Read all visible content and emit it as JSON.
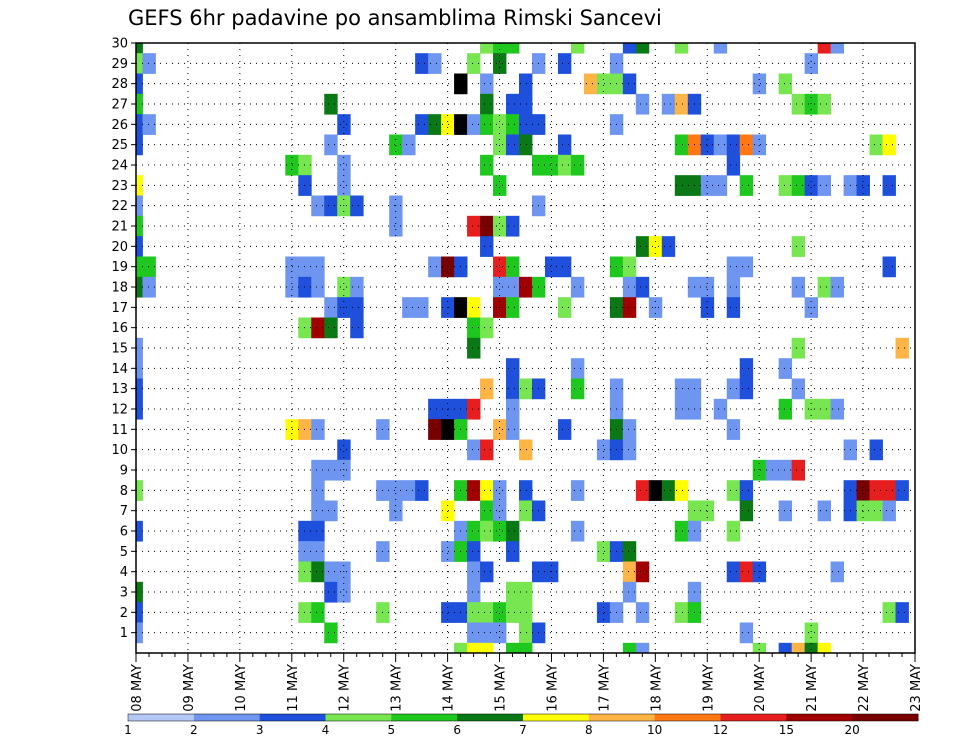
{
  "chart_data": {
    "type": "heatmap",
    "title": "GEFS 6hr padavine po ansamblima Rimski Sancevi",
    "xlabel": "",
    "ylabel": "",
    "x_tick_labels": [
      "08 MAY",
      "09 MAY",
      "10 MAY",
      "11 MAY",
      "12 MAY",
      "13 MAY",
      "14 MAY",
      "15 MAY",
      "16 MAY",
      "17 MAY",
      "18 MAY",
      "19 MAY",
      "20 MAY",
      "21 MAY",
      "22 MAY",
      "23 MAY"
    ],
    "y_tick_labels": [
      "1",
      "2",
      "3",
      "4",
      "5",
      "6",
      "7",
      "8",
      "9",
      "10",
      "11",
      "12",
      "13",
      "14",
      "15",
      "16",
      "17",
      "18",
      "19",
      "20",
      "21",
      "22",
      "23",
      "24",
      "25",
      "26",
      "27",
      "28",
      "29",
      "30"
    ],
    "steps_per_day": 4,
    "time_steps": 61,
    "ylim": [
      0,
      30
    ],
    "grid": "dotted",
    "legend": {
      "placement": "bottom",
      "labels": [
        "1",
        "2",
        "3",
        "4",
        "5",
        "6",
        "7",
        "8",
        "10",
        "12",
        "15",
        "20"
      ],
      "colors": [
        "#b4c8f5",
        "#6e96f0",
        "#1e50dc",
        "#78e650",
        "#1ec81e",
        "#0a7814",
        "#ffff00",
        "#ffb446",
        "#ff7814",
        "#e61e1e",
        "#a00000",
        "#780000"
      ]
    },
    "cells": [
      [
        30,
        0,
        5
      ],
      [
        30,
        27,
        3
      ],
      [
        30,
        28,
        4
      ],
      [
        30,
        29,
        4
      ],
      [
        30,
        34,
        3
      ],
      [
        30,
        38,
        2
      ],
      [
        30,
        39,
        5
      ],
      [
        30,
        42,
        3
      ],
      [
        30,
        45,
        1
      ],
      [
        30,
        53,
        9
      ],
      [
        30,
        54,
        1
      ],
      [
        29,
        0,
        3
      ],
      [
        29,
        1,
        1
      ],
      [
        29,
        22,
        2
      ],
      [
        29,
        23,
        1
      ],
      [
        29,
        26,
        3
      ],
      [
        29,
        28,
        5
      ],
      [
        29,
        31,
        1
      ],
      [
        29,
        33,
        2
      ],
      [
        29,
        37,
        1
      ],
      [
        29,
        52,
        1
      ],
      [
        28,
        0,
        2
      ],
      [
        28,
        25,
        12
      ],
      [
        28,
        27,
        1
      ],
      [
        28,
        30,
        2
      ],
      [
        28,
        35,
        7
      ],
      [
        28,
        36,
        3
      ],
      [
        28,
        37,
        3
      ],
      [
        28,
        38,
        2
      ],
      [
        28,
        48,
        1
      ],
      [
        28,
        50,
        3
      ],
      [
        27,
        0,
        4
      ],
      [
        27,
        15,
        5
      ],
      [
        27,
        27,
        5
      ],
      [
        27,
        29,
        2
      ],
      [
        27,
        30,
        2
      ],
      [
        27,
        39,
        1
      ],
      [
        27,
        41,
        1
      ],
      [
        27,
        42,
        7
      ],
      [
        27,
        43,
        2
      ],
      [
        27,
        51,
        3
      ],
      [
        27,
        52,
        4
      ],
      [
        27,
        53,
        3
      ],
      [
        26,
        0,
        2
      ],
      [
        26,
        1,
        1
      ],
      [
        26,
        16,
        2
      ],
      [
        26,
        22,
        2
      ],
      [
        26,
        23,
        5
      ],
      [
        26,
        24,
        6
      ],
      [
        26,
        25,
        12
      ],
      [
        26,
        26,
        1
      ],
      [
        26,
        27,
        4
      ],
      [
        26,
        28,
        3
      ],
      [
        26,
        29,
        4
      ],
      [
        26,
        30,
        2
      ],
      [
        26,
        31,
        2
      ],
      [
        26,
        37,
        1
      ],
      [
        25,
        0,
        2
      ],
      [
        25,
        15,
        1
      ],
      [
        25,
        20,
        4
      ],
      [
        25,
        21,
        1
      ],
      [
        25,
        28,
        3
      ],
      [
        25,
        29,
        2
      ],
      [
        25,
        30,
        5
      ],
      [
        25,
        33,
        2
      ],
      [
        25,
        42,
        4
      ],
      [
        25,
        43,
        8
      ],
      [
        25,
        44,
        2
      ],
      [
        25,
        45,
        1
      ],
      [
        25,
        46,
        2
      ],
      [
        25,
        47,
        8
      ],
      [
        25,
        48,
        1
      ],
      [
        25,
        57,
        3
      ],
      [
        25,
        58,
        6
      ],
      [
        24,
        12,
        4
      ],
      [
        24,
        13,
        3
      ],
      [
        24,
        16,
        1
      ],
      [
        24,
        27,
        4
      ],
      [
        24,
        31,
        4
      ],
      [
        24,
        32,
        4
      ],
      [
        24,
        33,
        3
      ],
      [
        24,
        34,
        4
      ],
      [
        24,
        46,
        2
      ],
      [
        23,
        0,
        6
      ],
      [
        23,
        13,
        2
      ],
      [
        23,
        16,
        1
      ],
      [
        23,
        28,
        4
      ],
      [
        23,
        42,
        5
      ],
      [
        23,
        43,
        5
      ],
      [
        23,
        44,
        1
      ],
      [
        23,
        45,
        1
      ],
      [
        23,
        47,
        4
      ],
      [
        23,
        50,
        3
      ],
      [
        23,
        51,
        4
      ],
      [
        23,
        52,
        2
      ],
      [
        23,
        53,
        1
      ],
      [
        23,
        55,
        1
      ],
      [
        23,
        56,
        2
      ],
      [
        23,
        58,
        2
      ],
      [
        22,
        0,
        1
      ],
      [
        22,
        14,
        1
      ],
      [
        22,
        15,
        2
      ],
      [
        22,
        16,
        3
      ],
      [
        22,
        17,
        2
      ],
      [
        22,
        20,
        1
      ],
      [
        22,
        31,
        1
      ],
      [
        21,
        0,
        4
      ],
      [
        21,
        20,
        1
      ],
      [
        21,
        26,
        9
      ],
      [
        21,
        27,
        11
      ],
      [
        21,
        28,
        3
      ],
      [
        21,
        29,
        2
      ],
      [
        20,
        0,
        2
      ],
      [
        20,
        27,
        2
      ],
      [
        20,
        39,
        5
      ],
      [
        20,
        40,
        6
      ],
      [
        20,
        41,
        2
      ],
      [
        20,
        51,
        3
      ],
      [
        19,
        0,
        4
      ],
      [
        19,
        1,
        4
      ],
      [
        19,
        12,
        1
      ],
      [
        19,
        13,
        1
      ],
      [
        19,
        14,
        1
      ],
      [
        19,
        23,
        1
      ],
      [
        19,
        24,
        11
      ],
      [
        19,
        25,
        2
      ],
      [
        19,
        28,
        9
      ],
      [
        19,
        29,
        4
      ],
      [
        19,
        32,
        2
      ],
      [
        19,
        33,
        2
      ],
      [
        19,
        37,
        4
      ],
      [
        19,
        38,
        3
      ],
      [
        19,
        46,
        1
      ],
      [
        19,
        47,
        1
      ],
      [
        19,
        58,
        2
      ],
      [
        18,
        0,
        5
      ],
      [
        18,
        1,
        1
      ],
      [
        18,
        12,
        1
      ],
      [
        18,
        13,
        2
      ],
      [
        18,
        14,
        1
      ],
      [
        18,
        16,
        3
      ],
      [
        18,
        17,
        1
      ],
      [
        18,
        28,
        1
      ],
      [
        18,
        29,
        1
      ],
      [
        18,
        30,
        10
      ],
      [
        18,
        31,
        4
      ],
      [
        18,
        34,
        1
      ],
      [
        18,
        38,
        1
      ],
      [
        18,
        39,
        2
      ],
      [
        18,
        43,
        1
      ],
      [
        18,
        44,
        1
      ],
      [
        18,
        46,
        1
      ],
      [
        18,
        51,
        1
      ],
      [
        18,
        53,
        3
      ],
      [
        18,
        54,
        1
      ],
      [
        17,
        15,
        1
      ],
      [
        17,
        16,
        2
      ],
      [
        17,
        17,
        2
      ],
      [
        17,
        21,
        1
      ],
      [
        17,
        22,
        1
      ],
      [
        17,
        24,
        2
      ],
      [
        17,
        25,
        12
      ],
      [
        17,
        26,
        6
      ],
      [
        17,
        28,
        10
      ],
      [
        17,
        29,
        4
      ],
      [
        17,
        33,
        3
      ],
      [
        17,
        37,
        5
      ],
      [
        17,
        38,
        10
      ],
      [
        17,
        40,
        1
      ],
      [
        17,
        44,
        2
      ],
      [
        17,
        46,
        2
      ],
      [
        17,
        52,
        1
      ],
      [
        16,
        13,
        3
      ],
      [
        16,
        14,
        10
      ],
      [
        16,
        15,
        5
      ],
      [
        16,
        17,
        2
      ],
      [
        16,
        26,
        4
      ],
      [
        16,
        27,
        3
      ],
      [
        15,
        0,
        1
      ],
      [
        15,
        26,
        5
      ],
      [
        15,
        51,
        3
      ],
      [
        15,
        59,
        7
      ],
      [
        14,
        0,
        1
      ],
      [
        14,
        29,
        2
      ],
      [
        14,
        34,
        1
      ],
      [
        14,
        47,
        2
      ],
      [
        14,
        50,
        1
      ],
      [
        13,
        0,
        2
      ],
      [
        13,
        27,
        7
      ],
      [
        13,
        29,
        2
      ],
      [
        13,
        30,
        3
      ],
      [
        13,
        31,
        2
      ],
      [
        13,
        34,
        4
      ],
      [
        13,
        37,
        1
      ],
      [
        13,
        42,
        1
      ],
      [
        13,
        43,
        1
      ],
      [
        13,
        46,
        1
      ],
      [
        13,
        47,
        2
      ],
      [
        13,
        51,
        1
      ],
      [
        12,
        0,
        2
      ],
      [
        12,
        23,
        2
      ],
      [
        12,
        24,
        2
      ],
      [
        12,
        25,
        2
      ],
      [
        12,
        26,
        9
      ],
      [
        12,
        29,
        1
      ],
      [
        12,
        37,
        1
      ],
      [
        12,
        42,
        1
      ],
      [
        12,
        43,
        1
      ],
      [
        12,
        45,
        1
      ],
      [
        12,
        50,
        4
      ],
      [
        12,
        52,
        3
      ],
      [
        12,
        53,
        3
      ],
      [
        12,
        54,
        1
      ],
      [
        11,
        12,
        6
      ],
      [
        11,
        13,
        7
      ],
      [
        11,
        14,
        1
      ],
      [
        11,
        19,
        1
      ],
      [
        11,
        23,
        11
      ],
      [
        11,
        24,
        12
      ],
      [
        11,
        25,
        4
      ],
      [
        11,
        28,
        7
      ],
      [
        11,
        29,
        1
      ],
      [
        11,
        33,
        2
      ],
      [
        11,
        37,
        5
      ],
      [
        11,
        38,
        1
      ],
      [
        11,
        46,
        1
      ],
      [
        10,
        16,
        2
      ],
      [
        10,
        26,
        1
      ],
      [
        10,
        27,
        9
      ],
      [
        10,
        30,
        7
      ],
      [
        10,
        36,
        1
      ],
      [
        10,
        37,
        2
      ],
      [
        10,
        38,
        1
      ],
      [
        10,
        55,
        1
      ],
      [
        10,
        57,
        2
      ],
      [
        9,
        14,
        1
      ],
      [
        9,
        15,
        1
      ],
      [
        9,
        16,
        1
      ],
      [
        9,
        48,
        4
      ],
      [
        9,
        49,
        1
      ],
      [
        9,
        50,
        1
      ],
      [
        9,
        51,
        9
      ],
      [
        8,
        0,
        3
      ],
      [
        8,
        14,
        1
      ],
      [
        8,
        19,
        1
      ],
      [
        8,
        20,
        1
      ],
      [
        8,
        21,
        1
      ],
      [
        8,
        22,
        2
      ],
      [
        8,
        25,
        4
      ],
      [
        8,
        26,
        10
      ],
      [
        8,
        27,
        6
      ],
      [
        8,
        28,
        1
      ],
      [
        8,
        30,
        2
      ],
      [
        8,
        34,
        1
      ],
      [
        8,
        39,
        9
      ],
      [
        8,
        40,
        12
      ],
      [
        8,
        41,
        5
      ],
      [
        8,
        42,
        6
      ],
      [
        8,
        46,
        3
      ],
      [
        8,
        47,
        2
      ],
      [
        8,
        55,
        2
      ],
      [
        8,
        56,
        11
      ],
      [
        8,
        57,
        9
      ],
      [
        8,
        58,
        9
      ],
      [
        8,
        59,
        2
      ],
      [
        7,
        14,
        1
      ],
      [
        7,
        15,
        1
      ],
      [
        7,
        20,
        1
      ],
      [
        7,
        24,
        6
      ],
      [
        7,
        27,
        4
      ],
      [
        7,
        28,
        1
      ],
      [
        7,
        30,
        3
      ],
      [
        7,
        31,
        2
      ],
      [
        7,
        43,
        3
      ],
      [
        7,
        44,
        3
      ],
      [
        7,
        47,
        5
      ],
      [
        7,
        50,
        1
      ],
      [
        7,
        53,
        1
      ],
      [
        7,
        55,
        2
      ],
      [
        7,
        56,
        3
      ],
      [
        7,
        57,
        3
      ],
      [
        7,
        58,
        1
      ],
      [
        6,
        0,
        2
      ],
      [
        6,
        13,
        2
      ],
      [
        6,
        14,
        2
      ],
      [
        6,
        25,
        1
      ],
      [
        6,
        26,
        4
      ],
      [
        6,
        27,
        3
      ],
      [
        6,
        28,
        4
      ],
      [
        6,
        29,
        5
      ],
      [
        6,
        34,
        1
      ],
      [
        6,
        42,
        4
      ],
      [
        6,
        43,
        1
      ],
      [
        6,
        46,
        3
      ],
      [
        5,
        13,
        1
      ],
      [
        5,
        14,
        1
      ],
      [
        5,
        19,
        1
      ],
      [
        5,
        24,
        1
      ],
      [
        5,
        25,
        4
      ],
      [
        5,
        26,
        2
      ],
      [
        5,
        29,
        2
      ],
      [
        5,
        36,
        3
      ],
      [
        5,
        37,
        2
      ],
      [
        5,
        38,
        5
      ],
      [
        4,
        13,
        3
      ],
      [
        4,
        14,
        5
      ],
      [
        4,
        15,
        1
      ],
      [
        4,
        16,
        1
      ],
      [
        4,
        26,
        1
      ],
      [
        4,
        27,
        2
      ],
      [
        4,
        31,
        2
      ],
      [
        4,
        32,
        2
      ],
      [
        4,
        38,
        7
      ],
      [
        4,
        39,
        10
      ],
      [
        4,
        46,
        2
      ],
      [
        4,
        47,
        9
      ],
      [
        4,
        48,
        2
      ],
      [
        4,
        54,
        1
      ],
      [
        3,
        0,
        5
      ],
      [
        3,
        15,
        2
      ],
      [
        3,
        16,
        1
      ],
      [
        3,
        26,
        1
      ],
      [
        3,
        29,
        3
      ],
      [
        3,
        30,
        3
      ],
      [
        3,
        38,
        1
      ],
      [
        3,
        43,
        1
      ],
      [
        2,
        0,
        2
      ],
      [
        2,
        13,
        3
      ],
      [
        2,
        14,
        4
      ],
      [
        2,
        19,
        3
      ],
      [
        2,
        24,
        2
      ],
      [
        2,
        25,
        2
      ],
      [
        2,
        26,
        3
      ],
      [
        2,
        27,
        3
      ],
      [
        2,
        28,
        4
      ],
      [
        2,
        29,
        3
      ],
      [
        2,
        30,
        3
      ],
      [
        2,
        36,
        2
      ],
      [
        2,
        37,
        1
      ],
      [
        2,
        39,
        1
      ],
      [
        2,
        42,
        3
      ],
      [
        2,
        43,
        4
      ],
      [
        2,
        58,
        3
      ],
      [
        2,
        59,
        2
      ],
      [
        1,
        0,
        1
      ],
      [
        1,
        15,
        4
      ],
      [
        1,
        26,
        1
      ],
      [
        1,
        27,
        1
      ],
      [
        1,
        28,
        1
      ],
      [
        1,
        30,
        3
      ],
      [
        1,
        31,
        2
      ],
      [
        1,
        47,
        1
      ],
      [
        1,
        52,
        3
      ],
      [
        0,
        25,
        3
      ],
      [
        0,
        26,
        6
      ],
      [
        0,
        27,
        6
      ],
      [
        0,
        29,
        4
      ],
      [
        0,
        30,
        4
      ],
      [
        0,
        38,
        4
      ],
      [
        0,
        39,
        1
      ],
      [
        0,
        48,
        3
      ],
      [
        0,
        50,
        2
      ],
      [
        0,
        51,
        7
      ],
      [
        0,
        52,
        5
      ],
      [
        0,
        53,
        6
      ]
    ]
  }
}
